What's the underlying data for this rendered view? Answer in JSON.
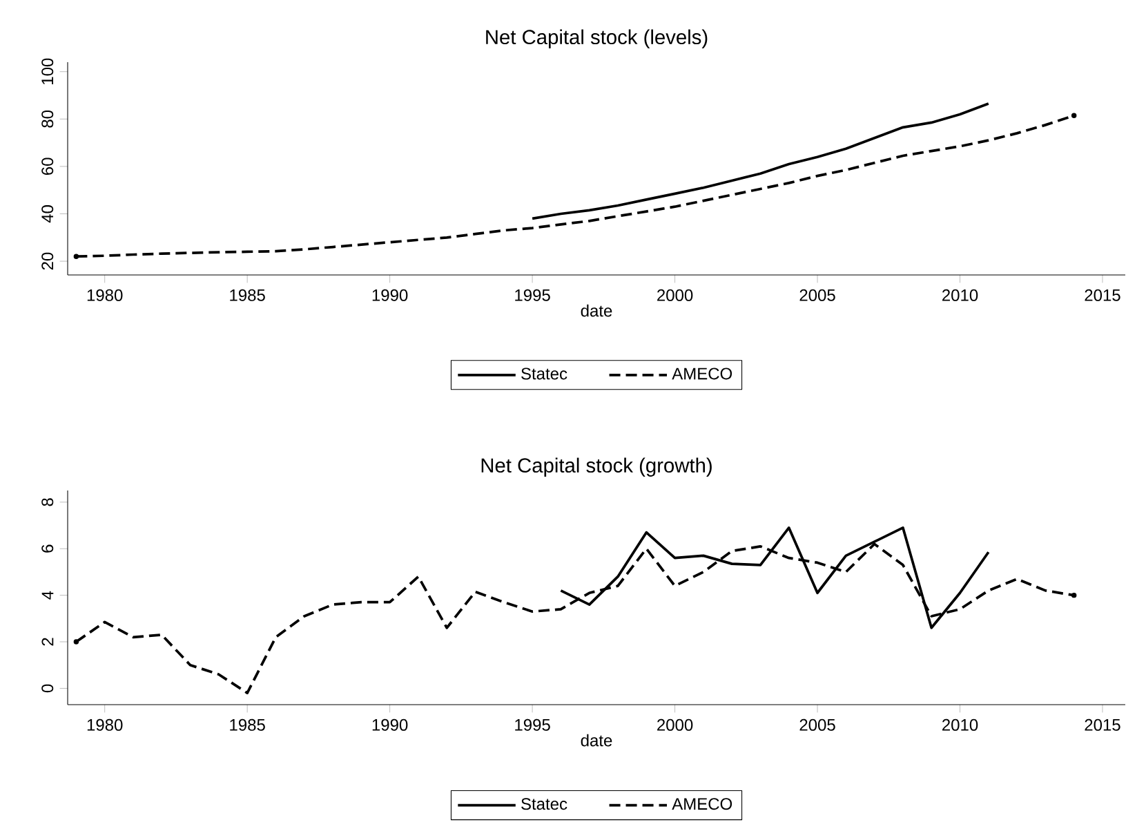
{
  "chart_data": [
    {
      "type": "line",
      "title": "Net Capital stock (levels)",
      "xlabel": "date",
      "xlim": [
        1978.7,
        2015.8
      ],
      "ylim": [
        14.2,
        104
      ],
      "xticks": [
        1980,
        1985,
        1990,
        1995,
        2000,
        2005,
        2010,
        2015
      ],
      "yticks": [
        20,
        40,
        60,
        80,
        100
      ],
      "legend": "bottom",
      "series": [
        {
          "name": "Statec",
          "color": "#000000",
          "line_style": "solid",
          "x": [
            1995,
            1996,
            1997,
            1998,
            1999,
            2000,
            2001,
            2002,
            2003,
            2004,
            2005,
            2006,
            2007,
            2008,
            2009,
            2010,
            2011
          ],
          "values": [
            38,
            40,
            41.5,
            43.5,
            46,
            48.5,
            51,
            54,
            57,
            61,
            64,
            67.5,
            72,
            76.5,
            78.5,
            82,
            86.5
          ]
        },
        {
          "name": "AMECO",
          "color": "#000000",
          "line_style": "dashed",
          "x": [
            1979,
            1980,
            1981,
            1982,
            1983,
            1984,
            1985,
            1986,
            1987,
            1988,
            1989,
            1990,
            1991,
            1992,
            1993,
            1994,
            1995,
            1996,
            1997,
            1998,
            1999,
            2000,
            2001,
            2002,
            2003,
            2004,
            2005,
            2006,
            2007,
            2008,
            2009,
            2010,
            2011,
            2012,
            2013,
            2014
          ],
          "values": [
            22,
            22.3,
            22.8,
            23.2,
            23.5,
            23.8,
            24,
            24.2,
            25,
            26,
            27,
            28,
            29,
            30,
            31.5,
            33,
            34,
            35.5,
            37,
            39,
            41,
            43,
            45.5,
            48,
            50.5,
            53,
            56,
            58.5,
            61.5,
            64.5,
            66.5,
            68.5,
            71,
            74,
            77.5,
            81.5
          ]
        }
      ]
    },
    {
      "type": "line",
      "title": "Net Capital stock (growth)",
      "xlabel": "date",
      "xlim": [
        1978.7,
        2015.8
      ],
      "ylim": [
        -0.7,
        8.5
      ],
      "xticks": [
        1980,
        1985,
        1990,
        1995,
        2000,
        2005,
        2010,
        2015
      ],
      "yticks": [
        0,
        2,
        4,
        6,
        8
      ],
      "legend": "bottom",
      "series": [
        {
          "name": "Statec",
          "color": "#000000",
          "line_style": "solid",
          "x": [
            1996,
            1997,
            1998,
            1999,
            2000,
            2001,
            2002,
            2003,
            2004,
            2005,
            2006,
            2007,
            2008,
            2009,
            2010,
            2011
          ],
          "values": [
            4.2,
            3.6,
            4.8,
            6.7,
            5.6,
            5.7,
            5.35,
            5.3,
            6.9,
            4.1,
            5.7,
            6.3,
            6.9,
            2.6,
            4.1,
            5.85
          ]
        },
        {
          "name": "AMECO",
          "color": "#000000",
          "line_style": "dashed",
          "x": [
            1979,
            1980,
            1981,
            1982,
            1983,
            1984,
            1985,
            1986,
            1987,
            1988,
            1989,
            1990,
            1991,
            1992,
            1993,
            1994,
            1995,
            1996,
            1997,
            1998,
            1999,
            2000,
            2001,
            2002,
            2003,
            2004,
            2005,
            2006,
            2007,
            2008,
            2009,
            2010,
            2011,
            2012,
            2013,
            2014
          ],
          "values": [
            2.0,
            2.85,
            2.2,
            2.3,
            1.0,
            0.6,
            -0.2,
            2.2,
            3.1,
            3.6,
            3.7,
            3.7,
            4.8,
            2.6,
            4.15,
            3.7,
            3.3,
            3.4,
            4.1,
            4.4,
            6.0,
            4.4,
            5.0,
            5.9,
            6.1,
            5.6,
            5.4,
            5.0,
            6.2,
            5.3,
            3.1,
            3.4,
            4.2,
            4.7,
            4.2,
            4.0
          ]
        }
      ]
    }
  ]
}
